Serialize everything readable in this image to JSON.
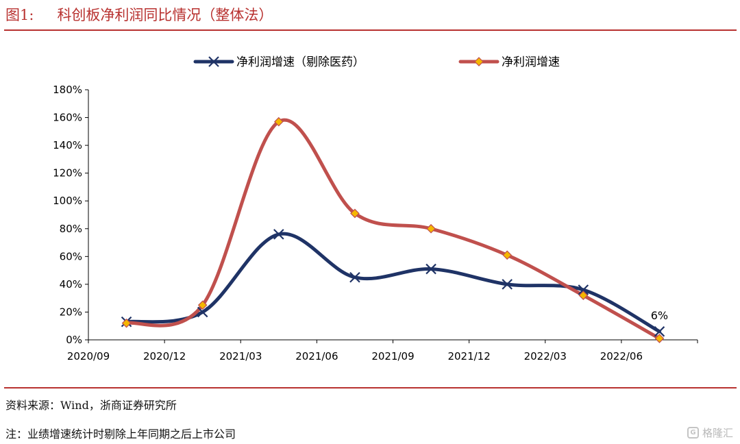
{
  "figure": {
    "number": "图1:",
    "title": "科创板净利润同比情况（整体法）"
  },
  "footer": {
    "source": "资料来源：Wind，浙商证券研究所",
    "note": "注：业绩增速统计时剔除上年同期之后上市公司"
  },
  "watermark": {
    "logo_letter": "G",
    "text": "格隆汇"
  },
  "chart_data": {
    "type": "line",
    "smooth": true,
    "categories": [
      "2020/09",
      "2020/12",
      "2021/03",
      "2021/06",
      "2021/09",
      "2021/12",
      "2022/03",
      "2022/06"
    ],
    "ylim": [
      0,
      180
    ],
    "yticks": [
      0,
      20,
      40,
      60,
      80,
      100,
      120,
      140,
      160,
      180
    ],
    "ytick_suffix": "%",
    "legend_position": "top",
    "grid": false,
    "series": [
      {
        "name": "净利润增速（剔除医药）",
        "values": [
          13,
          20,
          76,
          45,
          51,
          40,
          36,
          6
        ],
        "color": "#1f3366",
        "marker": "x"
      },
      {
        "name": "净利润增速",
        "values": [
          12,
          25,
          157,
          91,
          80,
          61,
          32,
          1
        ],
        "color": "#c0504d",
        "marker": "diamond",
        "marker_color": "#f5b700"
      }
    ],
    "annotations": [
      {
        "series": 0,
        "index": 7,
        "text": "6%"
      }
    ]
  }
}
